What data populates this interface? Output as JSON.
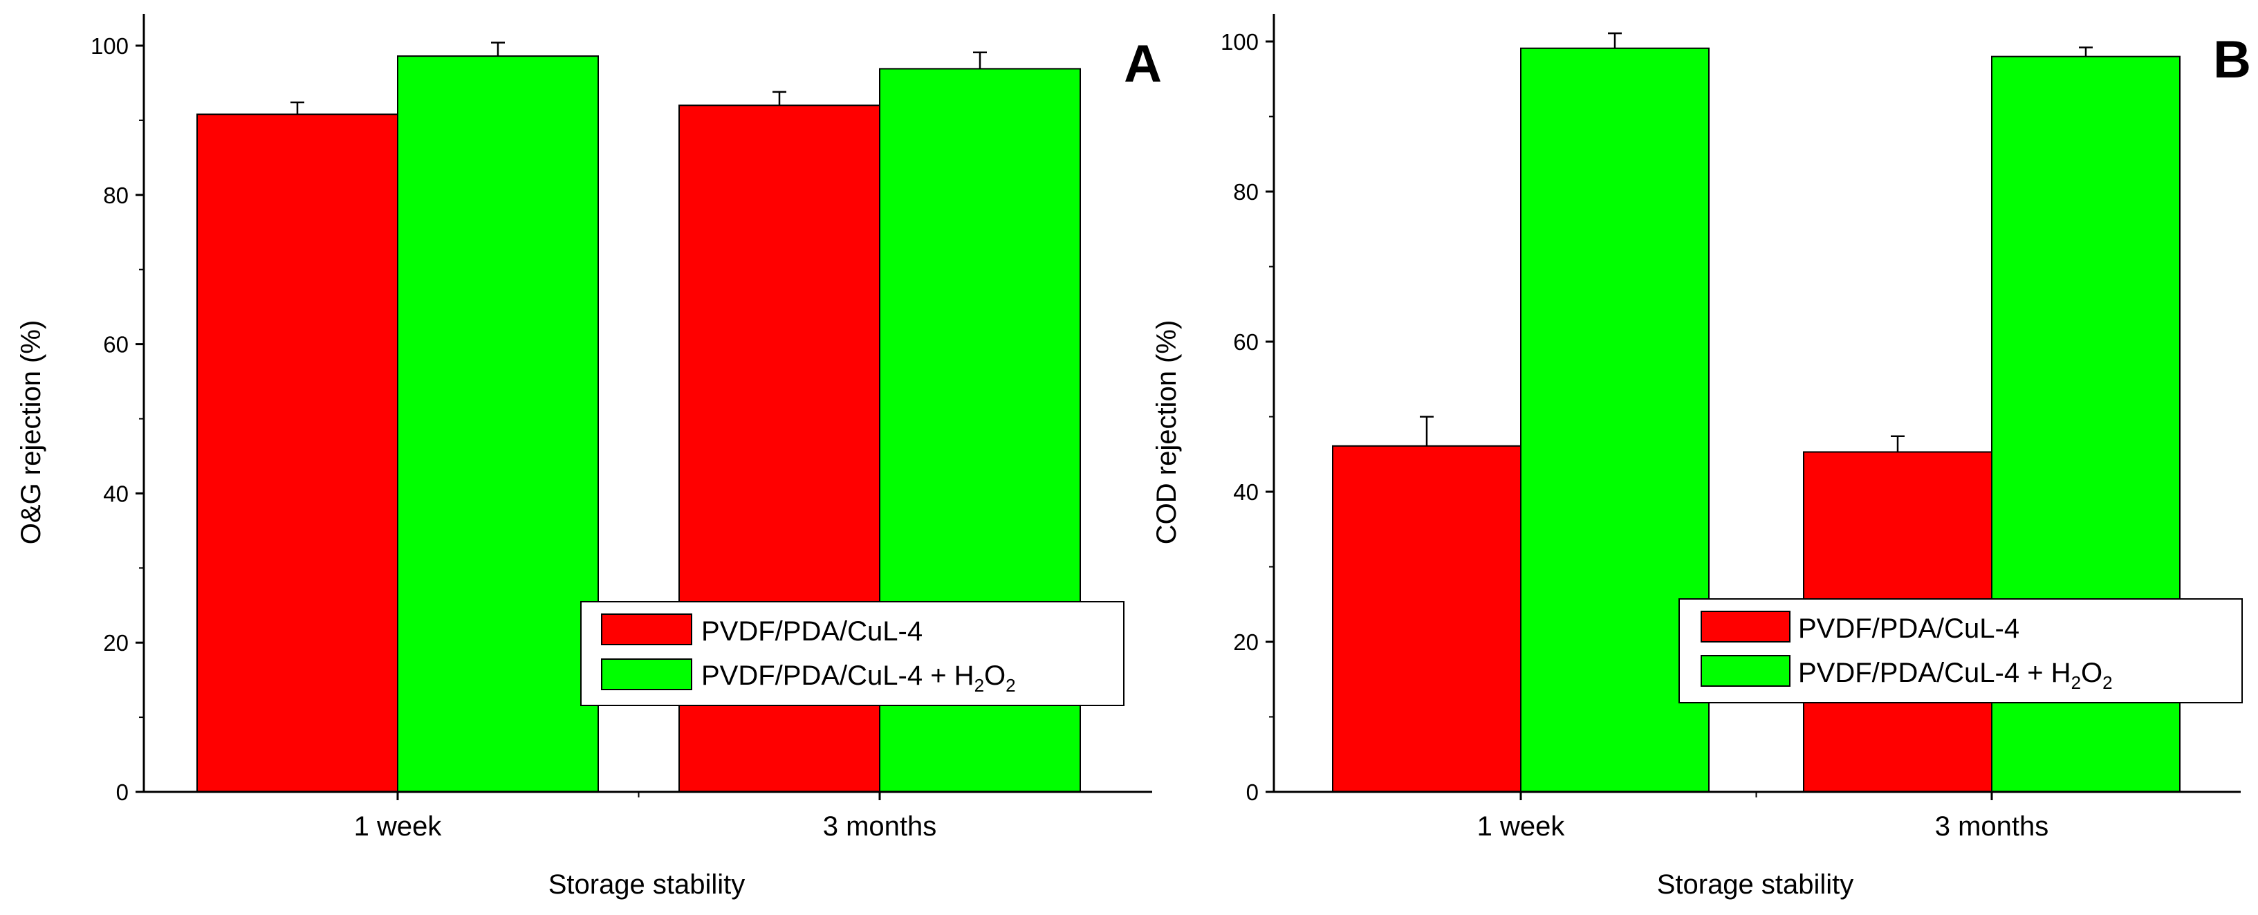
{
  "chart_data": [
    {
      "panel": "A",
      "type": "bar",
      "xlabel": "Storage stability",
      "ylabel": "O&G rejection (%)",
      "ylim": [
        0,
        100
      ],
      "yticks": [
        "0",
        "20",
        "40",
        "60",
        "80",
        "100"
      ],
      "categories": [
        "1 week",
        "3 months"
      ],
      "legend_position": "lower-right",
      "series": [
        {
          "name": "PVDF/PDA/CuL-4",
          "color": "#ff0000",
          "values": [
            90.8,
            92.0
          ],
          "errors": [
            1.6,
            1.8
          ]
        },
        {
          "name": "PVDF/PDA/CuL-4 + H",
          "name_sub1": "2",
          "name_mid": "O",
          "name_sub2": "2",
          "color": "#00ff00",
          "values": [
            98.6,
            96.9
          ],
          "errors": [
            1.8,
            2.2
          ]
        }
      ]
    },
    {
      "panel": "B",
      "type": "bar",
      "xlabel": "Storage stability",
      "ylabel": "COD rejection (%)",
      "ylim": [
        0,
        100
      ],
      "yticks": [
        "0",
        "20",
        "40",
        "60",
        "80",
        "100"
      ],
      "categories": [
        "1 week",
        "3 months"
      ],
      "legend_position": "lower-right",
      "series": [
        {
          "name": "PVDF/PDA/CuL-4",
          "color": "#ff0000",
          "values": [
            46.1,
            45.3
          ],
          "errors": [
            3.9,
            2.1
          ]
        },
        {
          "name": "PVDF/PDA/CuL-4 + H",
          "name_sub1": "2",
          "name_mid": "O",
          "name_sub2": "2",
          "color": "#00ff00",
          "values": [
            99.1,
            98.0
          ],
          "errors": [
            2.0,
            1.2
          ]
        }
      ]
    }
  ]
}
